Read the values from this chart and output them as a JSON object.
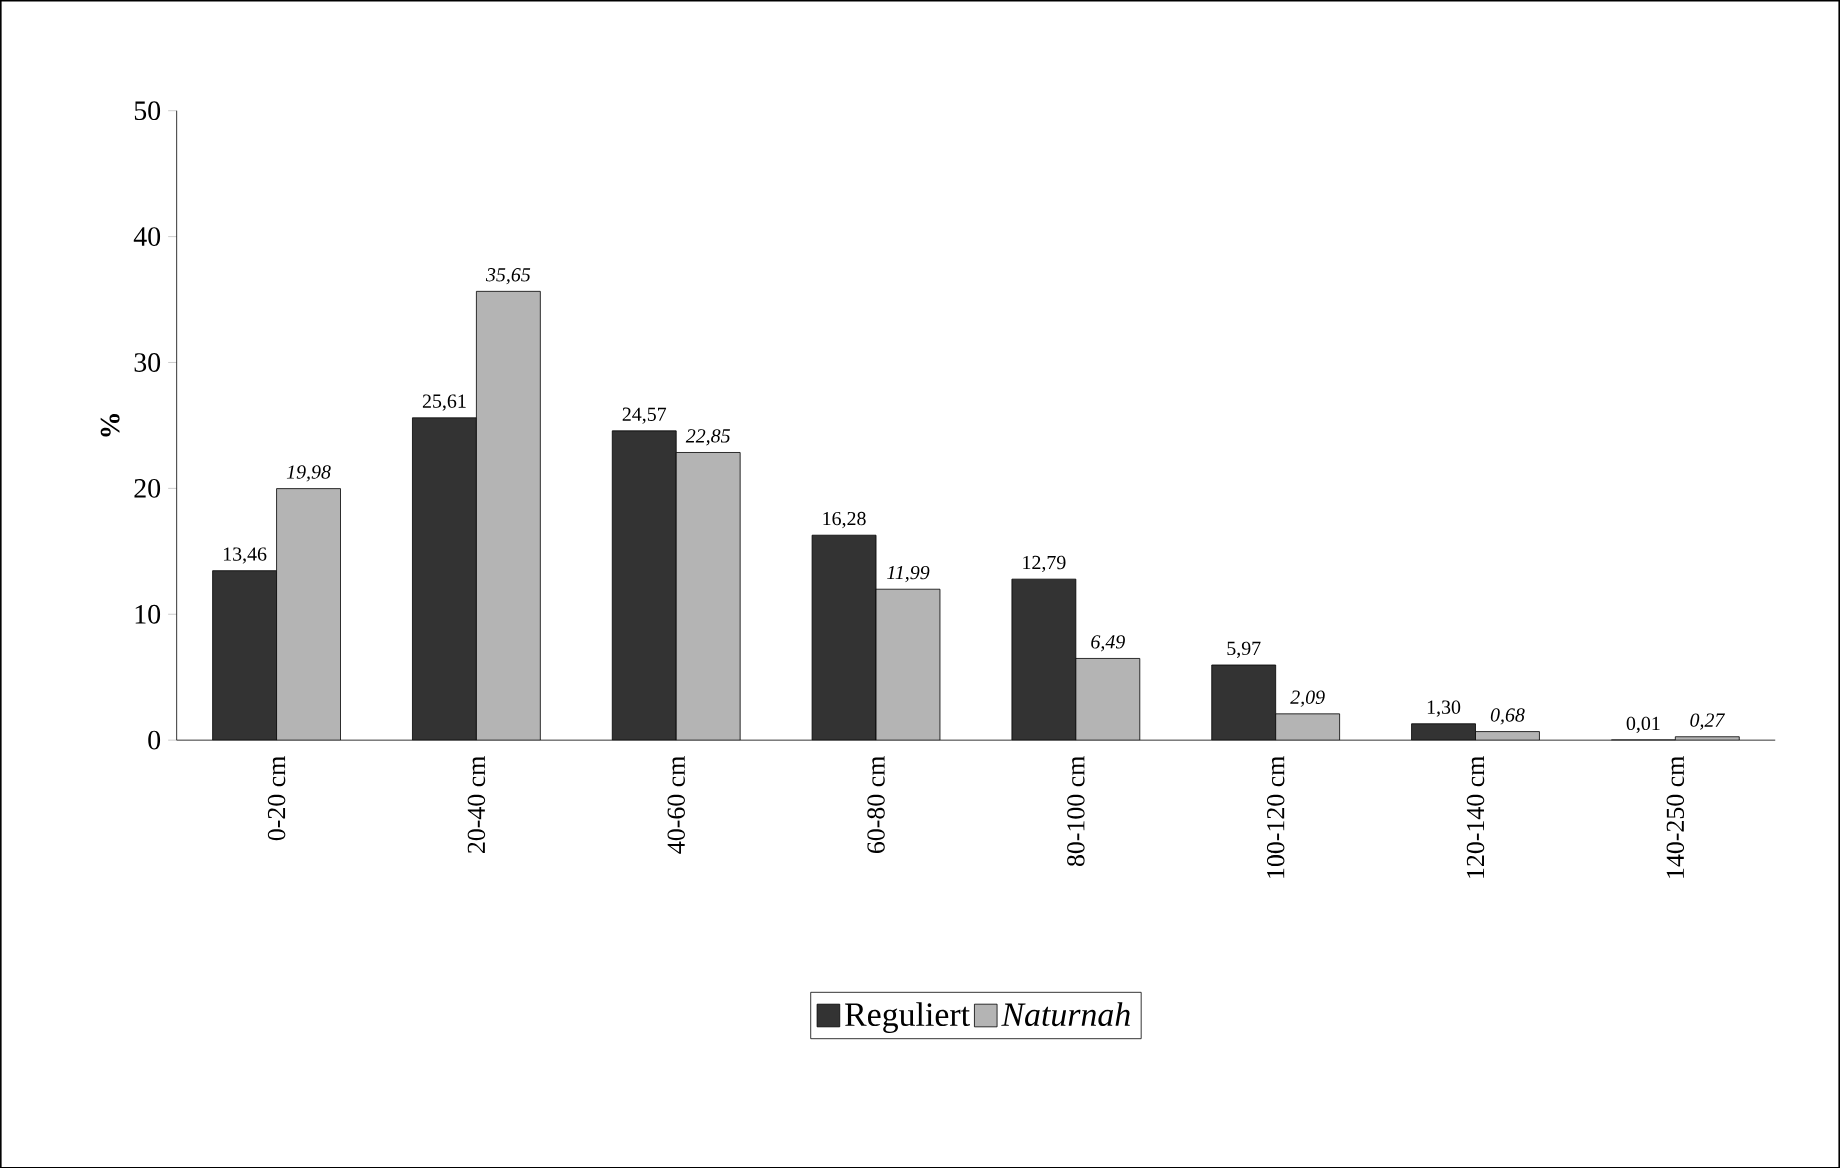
{
  "chart_data": {
    "type": "bar",
    "ylabel": "%",
    "categories": [
      "0-20 cm",
      "20-40 cm",
      "40-60 cm",
      "60-80 cm",
      "80-100 cm",
      "100-120 cm",
      "120-140 cm",
      "140-250 cm"
    ],
    "series": [
      {
        "name": "Reguliert",
        "color": "#333333",
        "values": [
          13.46,
          25.61,
          24.57,
          16.28,
          12.79,
          5.97,
          1.3,
          0.01
        ],
        "value_labels": [
          "13,46",
          "25,61",
          "24,57",
          "16,28",
          "12,79",
          "5,97",
          "1,30",
          "0,01"
        ]
      },
      {
        "name": "*Naturnah*",
        "color": "#b4b4b4",
        "values": [
          19.98,
          35.65,
          22.85,
          11.99,
          6.49,
          2.09,
          0.68,
          0.27
        ],
        "value_labels": [
          "*19,98*",
          "*35,65*",
          "*22,85*",
          "*11,99*",
          "*6,49*",
          "*2,09*",
          "*0,68*",
          "*0,27*"
        ]
      }
    ],
    "ylim": [
      0,
      50
    ],
    "yticks": [
      0,
      10,
      20,
      30,
      40,
      50
    ],
    "legend": "bottom",
    "grid": false
  }
}
